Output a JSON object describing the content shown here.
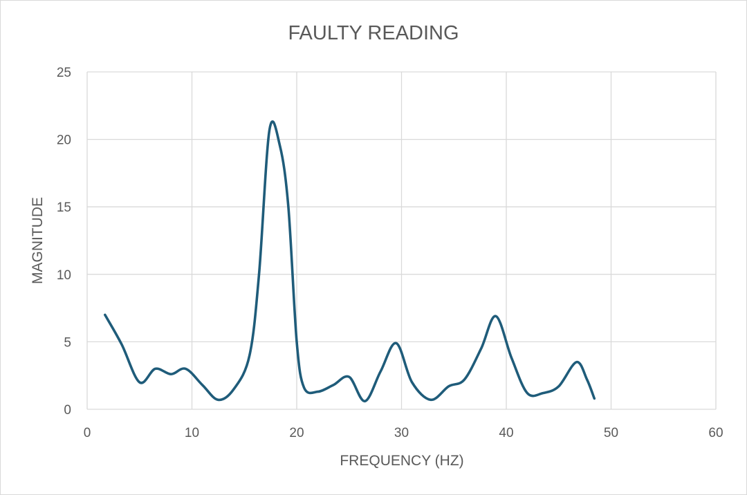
{
  "chart_data": {
    "type": "line",
    "title": "FAULTY READING",
    "xlabel": "FREQUENCY (HZ)",
    "ylabel": "MAGNITUDE",
    "xlim": [
      0,
      60
    ],
    "ylim": [
      0,
      25
    ],
    "xticks": [
      0,
      10,
      20,
      30,
      40,
      50,
      60
    ],
    "yticks": [
      0,
      5,
      10,
      15,
      20,
      25
    ],
    "grid": true,
    "line_color": "#1f5c7a",
    "series": [
      {
        "x": [
          1.7,
          3.3,
          5.0,
          6.5,
          8.0,
          9.4,
          11.0,
          12.5,
          14.0,
          15.5,
          16.4,
          17.4,
          18.4,
          19.2,
          20.0,
          20.7,
          22.0,
          23.5,
          25.0,
          26.5,
          28.0,
          29.5,
          31.0,
          32.8,
          34.5,
          36.0,
          37.6,
          39.0,
          40.5,
          42.0,
          43.5,
          45.0,
          46.7,
          47.7,
          48.4
        ],
        "y": [
          7.0,
          4.8,
          2.0,
          3.0,
          2.6,
          3.0,
          1.8,
          0.7,
          1.5,
          4.0,
          10.0,
          20.7,
          19.5,
          15.0,
          5.0,
          1.6,
          1.3,
          1.8,
          2.4,
          0.6,
          2.8,
          4.9,
          2.0,
          0.7,
          1.7,
          2.2,
          4.5,
          6.9,
          3.8,
          1.2,
          1.2,
          1.7,
          3.5,
          2.2,
          0.8
        ]
      }
    ]
  }
}
